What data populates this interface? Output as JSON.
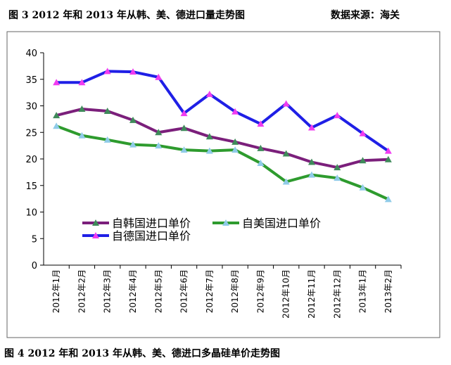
{
  "caption_top": "图 3   2012 年和 2013 年从韩、美、德进口量走势图",
  "source": "数据来源：海关",
  "caption_bottom": "图 4   2012 年和 2013 年从韩、美、德进口多晶硅单价走势图",
  "chart_data": {
    "type": "line",
    "categories": [
      "2012年1月",
      "2012年2月",
      "2012年3月",
      "2012年4月",
      "2012年5月",
      "2012年6月",
      "2012年7月",
      "2012年8月",
      "2012年9月",
      "2012年10月",
      "2012年11月",
      "2012年12月",
      "2013年1月",
      "2013年2月"
    ],
    "series": [
      {
        "name": "自韩国进口单价",
        "color": "#7b1f7b",
        "marker_color": "#3f8a5a",
        "values": [
          28.2,
          29.4,
          29.0,
          27.3,
          25.0,
          25.8,
          24.2,
          23.2,
          22.0,
          21.0,
          19.4,
          18.4,
          19.7,
          19.9
        ]
      },
      {
        "name": "自美国进口单价",
        "color": "#2e9b2e",
        "marker_color": "#8fcbe8",
        "values": [
          26.2,
          24.4,
          23.6,
          22.7,
          22.5,
          21.7,
          21.5,
          21.7,
          19.2,
          15.7,
          17.0,
          16.4,
          14.6,
          12.4
        ]
      },
      {
        "name": "自德国进口单价",
        "color": "#1f1fe6",
        "marker_color": "#f03cf0",
        "values": [
          34.4,
          34.4,
          36.5,
          36.4,
          35.4,
          28.6,
          32.2,
          28.9,
          26.6,
          30.4,
          25.9,
          28.2,
          24.8,
          21.5
        ]
      }
    ],
    "ylim": [
      0,
      40
    ],
    "yticks": [
      0,
      5,
      10,
      15,
      20,
      25,
      30,
      35,
      40
    ],
    "grid": false,
    "legend": "lower-left"
  }
}
